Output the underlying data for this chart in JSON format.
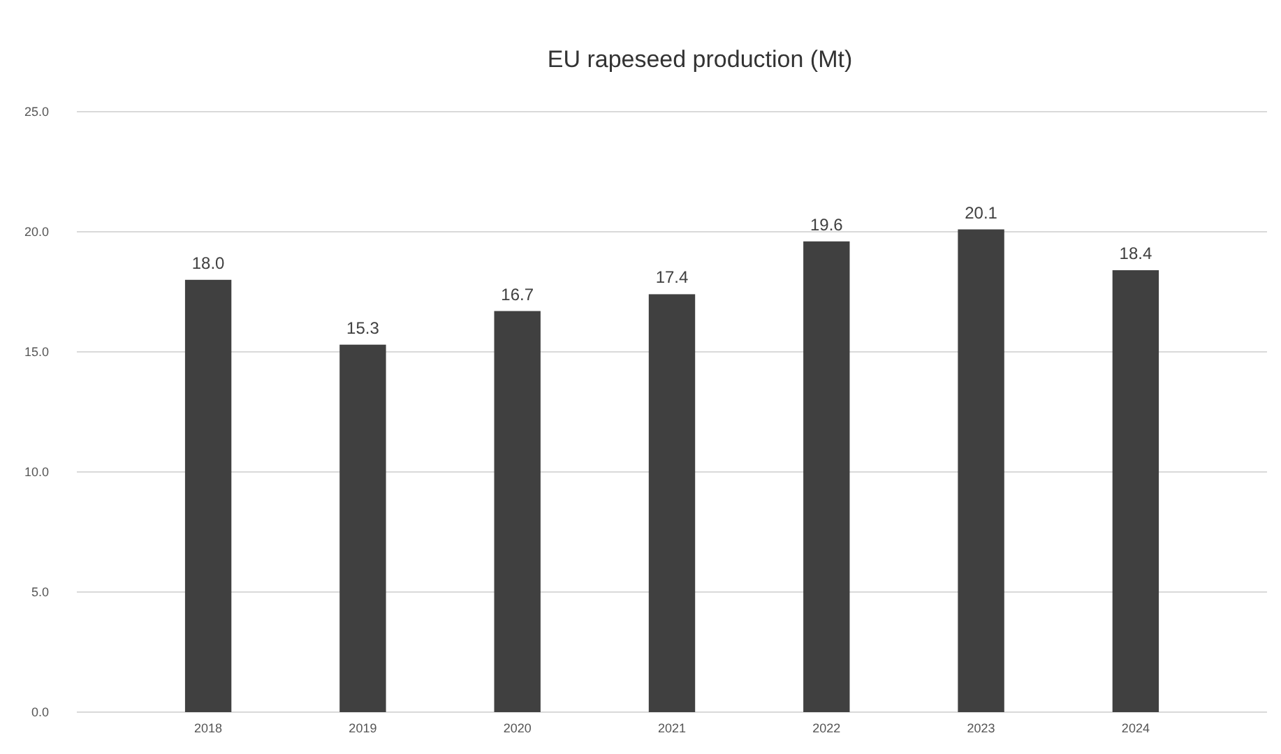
{
  "chart_data": {
    "type": "bar",
    "title": "EU rapeseed production (Mt)",
    "categories": [
      "2018",
      "2019",
      "2020",
      "2021",
      "2022",
      "2023",
      "2024"
    ],
    "values": [
      18.0,
      15.3,
      16.7,
      17.4,
      19.6,
      20.1,
      18.4
    ],
    "value_labels": [
      "18.0",
      "15.3",
      "16.7",
      "17.4",
      "19.6",
      "20.1",
      "18.4"
    ],
    "color": "#404040",
    "ylim": [
      0,
      25
    ],
    "yticks": [
      {
        "value": 0,
        "label": "0.0"
      },
      {
        "value": 5,
        "label": "5.0"
      },
      {
        "value": 10,
        "label": "10.0"
      },
      {
        "value": 15,
        "label": "15.0"
      },
      {
        "value": 20,
        "label": "20.0"
      },
      {
        "value": 25,
        "label": "25.0"
      }
    ],
    "grid": "y"
  }
}
